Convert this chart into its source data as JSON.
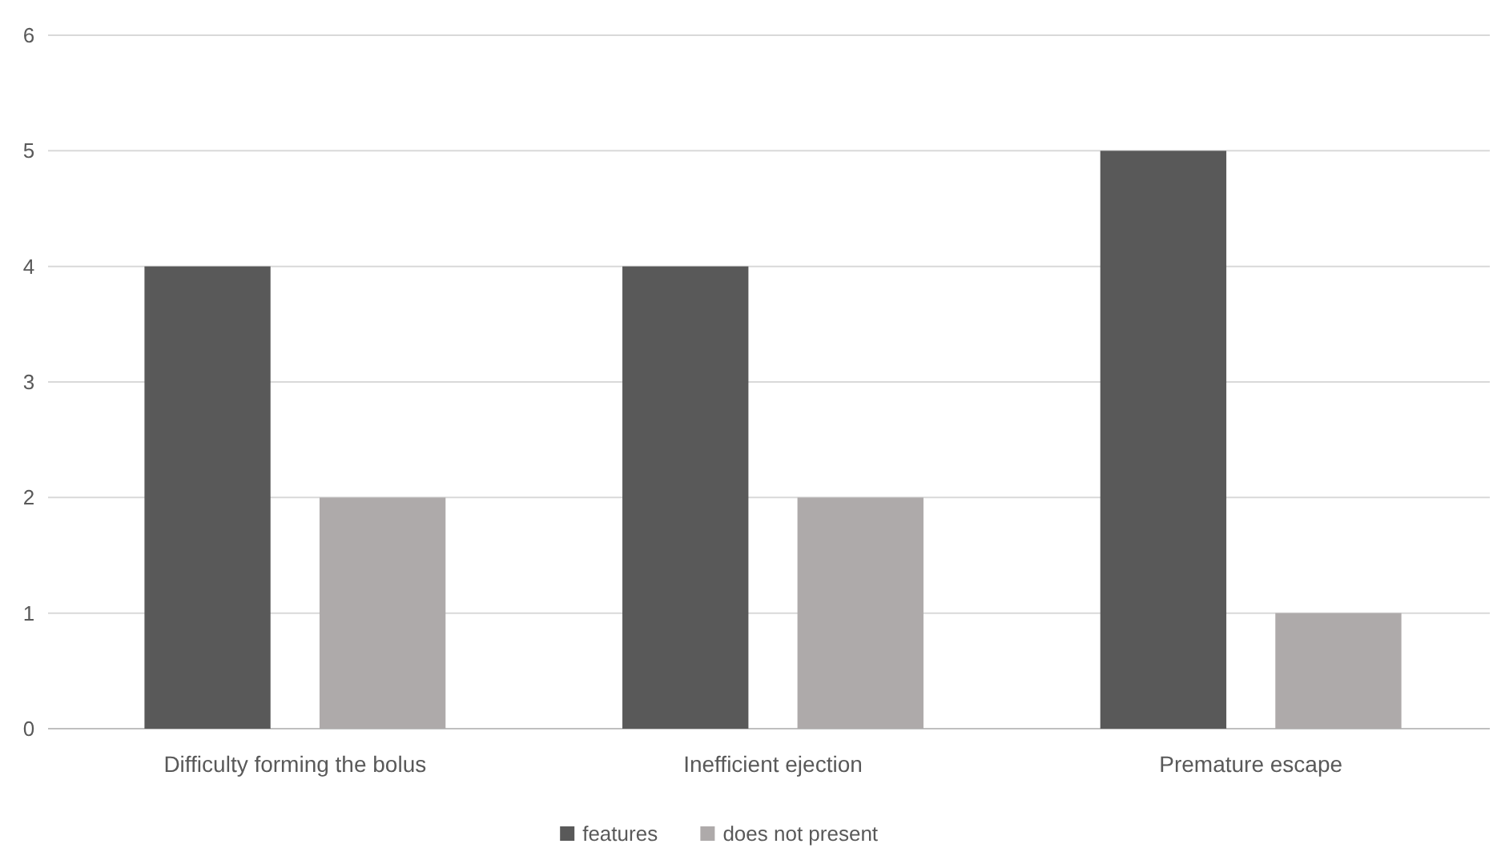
{
  "chart_data": {
    "type": "bar",
    "categories": [
      "Difficulty forming the bolus",
      "Inefficient ejection",
      "Premature escape"
    ],
    "series": [
      {
        "name": "features",
        "color": "#595959",
        "values": [
          4,
          4,
          5
        ]
      },
      {
        "name": "does not present",
        "color": "#aeaaaa",
        "values": [
          2,
          2,
          1
        ]
      }
    ],
    "ylim": [
      0,
      6
    ],
    "yticks": [
      0,
      1,
      2,
      3,
      4,
      5,
      6
    ],
    "grid": "y",
    "legend": "bottom"
  }
}
